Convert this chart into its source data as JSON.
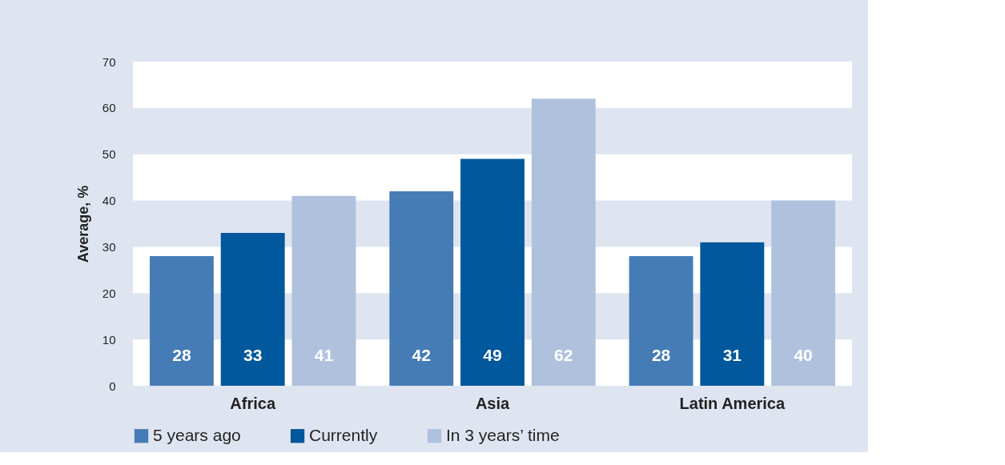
{
  "chart_data": {
    "type": "bar",
    "ylabel": "Average, %",
    "categories": [
      "Africa",
      "Asia",
      "Latin America"
    ],
    "series": [
      {
        "name": "5 years ago",
        "color": "#457cb5",
        "values": [
          28,
          42,
          28
        ]
      },
      {
        "name": "Currently",
        "color": "#02589c",
        "values": [
          33,
          49,
          31
        ]
      },
      {
        "name": "In 3 years’ time",
        "color": "#b0c1de",
        "values": [
          41,
          62,
          40
        ]
      }
    ],
    "ylim": [
      0,
      70
    ],
    "yticks": [
      0,
      10,
      20,
      30,
      40,
      50,
      60,
      70
    ],
    "bands": [
      {
        "axis": "y",
        "from": 0,
        "to": 10,
        "color": "#ffffff"
      },
      {
        "axis": "y",
        "from": 20,
        "to": 30,
        "color": "#ffffff"
      },
      {
        "axis": "y",
        "from": 40,
        "to": 50,
        "color": "#ffffff"
      },
      {
        "axis": "y",
        "from": 60,
        "to": 70,
        "color": "#ffffff"
      }
    ],
    "legend": "bottom",
    "data_labels": true
  }
}
